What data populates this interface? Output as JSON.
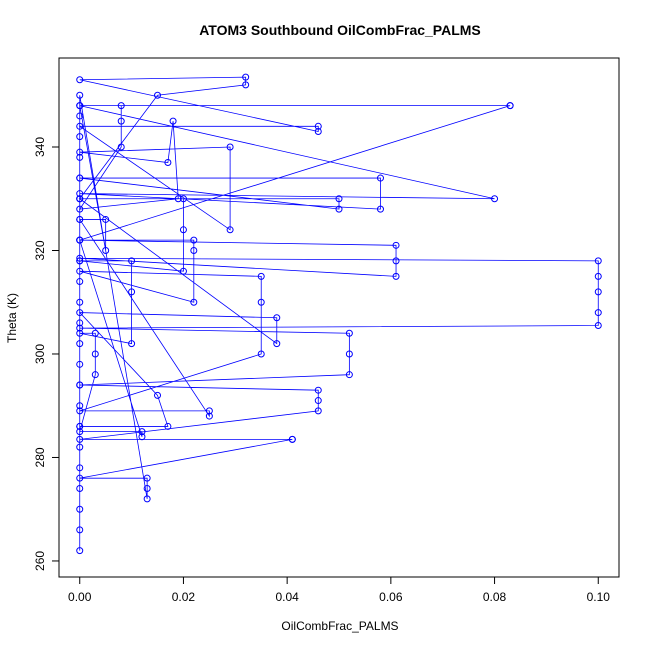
{
  "chart_data": {
    "type": "scatter",
    "title": "ATOM3 Southbound OilCombFrac_PALMS",
    "x_label": "OilCombFrac_PALMS",
    "y_label": "Theta (K)",
    "connect_points": true,
    "xlim": [
      -0.004,
      0.104
    ],
    "ylim": [
      256.9,
      357.2
    ],
    "xticks": [
      {
        "value": 0,
        "label": "0.00"
      },
      {
        "value": 0.02,
        "label": "0.02"
      },
      {
        "value": 0.04,
        "label": "0.04"
      },
      {
        "value": 0.06,
        "label": "0.06"
      },
      {
        "value": 0.08,
        "label": "0.08"
      },
      {
        "value": 0.1,
        "label": "0.10"
      }
    ],
    "yticks": [
      260,
      280,
      300,
      320,
      340
    ],
    "series": [
      {
        "color": "blue",
        "x": [
          0,
          0,
          0,
          0,
          0,
          0,
          0,
          0,
          0,
          0,
          0,
          0,
          0,
          0,
          0,
          0,
          0,
          0,
          0,
          0,
          0,
          0,
          0,
          0.013,
          0.013,
          0.013,
          0,
          0.041,
          0.041,
          0,
          0.046,
          0.046,
          0.046,
          0,
          0.052,
          0.052,
          0.052,
          0,
          0.1,
          0.1,
          0.1,
          0.1,
          0.1,
          0,
          0.061,
          0.061,
          0.061,
          0,
          0.083,
          0.083,
          0,
          0.08,
          0,
          0.058,
          0.058,
          0,
          0.05,
          0.05,
          0,
          0.015,
          0.032,
          0.032,
          0,
          0.046,
          0.046,
          0,
          0.029,
          0.029,
          0,
          0.017,
          0.018,
          0.019,
          0,
          0.008,
          0.008,
          0.008,
          0,
          0.005,
          0.005,
          0,
          0.025,
          0.025,
          0,
          0.035,
          0.035,
          0.035,
          0,
          0.022,
          0.022,
          0.022,
          0,
          0.012,
          0.012,
          0,
          0.003,
          0.003,
          0.003,
          0,
          0.01,
          0.01,
          0.01,
          0,
          0.02,
          0.02,
          0.02,
          0,
          0.038,
          0.038,
          0,
          0.015,
          0.017,
          0
        ],
        "y": [
          262,
          266,
          270,
          274,
          278,
          282,
          286,
          290,
          294,
          298,
          302,
          306,
          310,
          314,
          318,
          322,
          326,
          330,
          334,
          338,
          342,
          346,
          350,
          272,
          274,
          276,
          276,
          283.5,
          283.5,
          283.5,
          289,
          291,
          293,
          294,
          296,
          300,
          304,
          305,
          305.5,
          308,
          312,
          315,
          318,
          318.5,
          315,
          318,
          321,
          322,
          348,
          348,
          348,
          330,
          331,
          328,
          334,
          334,
          328,
          330,
          330,
          350,
          352,
          353.5,
          353,
          343,
          344,
          344,
          324,
          340,
          339,
          337,
          345,
          330,
          328,
          340,
          345,
          348,
          348,
          320,
          326,
          326,
          288,
          289,
          289,
          300,
          310,
          315,
          316,
          310,
          320,
          322,
          322,
          284,
          285,
          285,
          296,
          300,
          304,
          304,
          302,
          312,
          318,
          318,
          316,
          324,
          330,
          330,
          302,
          307,
          308,
          292,
          286,
          286
        ]
      }
    ]
  }
}
